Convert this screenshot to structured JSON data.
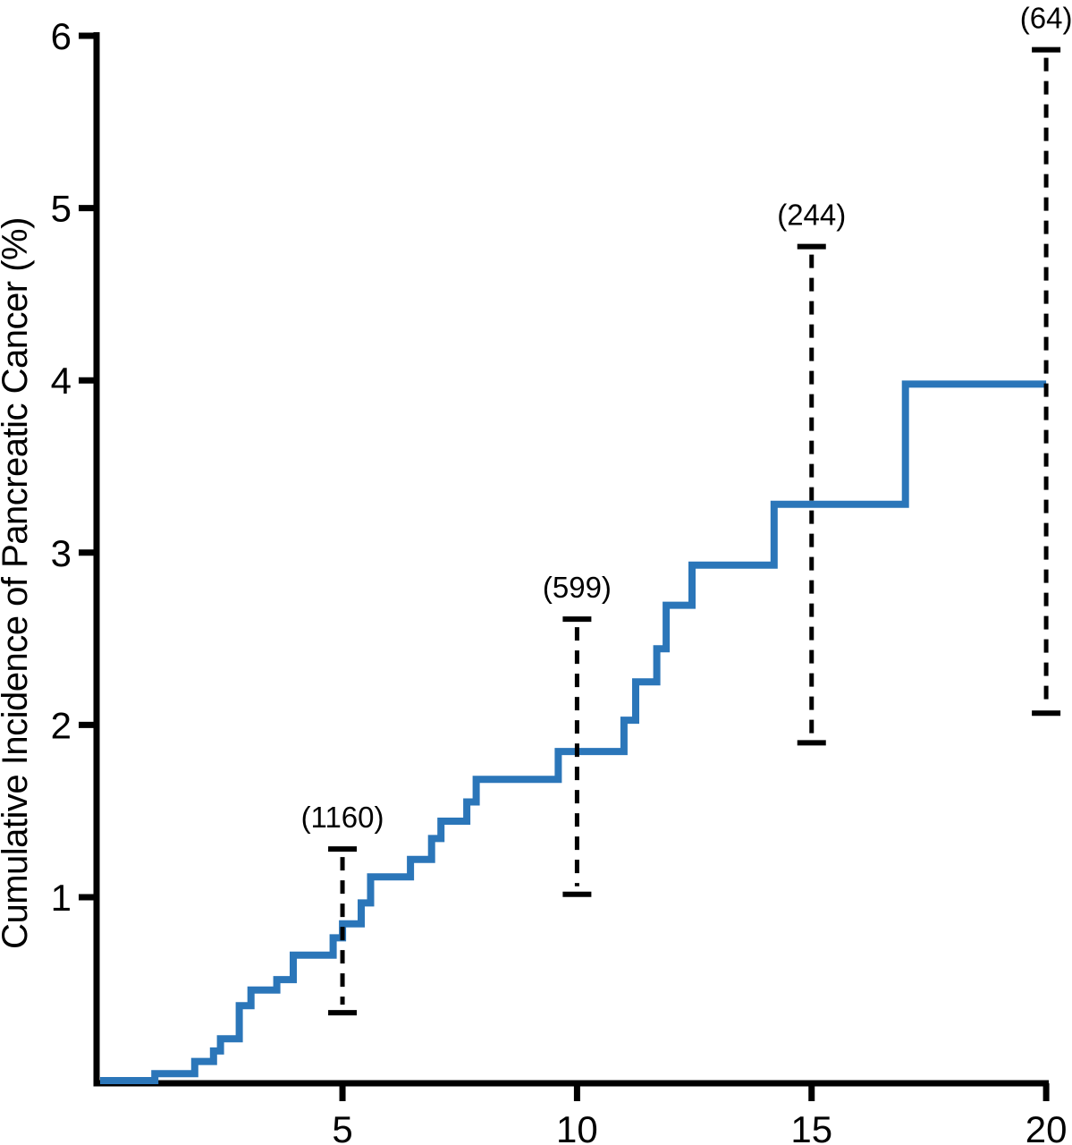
{
  "chart_data": {
    "type": "line",
    "line_style": "step-post",
    "title": "",
    "xlabel": "",
    "ylabel": "Cumulative Incidence of Pancreatic Cancer (%)",
    "xlim": [
      0,
      20
    ],
    "ylim": [
      0,
      6
    ],
    "xticks": [
      5,
      10,
      15,
      20
    ],
    "yticks": [
      1,
      2,
      3,
      4,
      5,
      6
    ],
    "grid": false,
    "legend": "none",
    "colors": {
      "curve": "#2B76B9",
      "axis": "#000000",
      "text": "#000000"
    },
    "series": [
      {
        "name": "cumulative-incidence-of-pancreatic-cancer",
        "color": "#2B76B9",
        "steps": [
          [
            1.0,
            0.04
          ],
          [
            1.85,
            0.11
          ],
          [
            2.25,
            0.17
          ],
          [
            2.4,
            0.24
          ],
          [
            2.8,
            0.43
          ],
          [
            3.05,
            0.52
          ],
          [
            3.6,
            0.58
          ],
          [
            3.95,
            0.72
          ],
          [
            4.8,
            0.82
          ],
          [
            5.0,
            0.9
          ],
          [
            5.4,
            1.02
          ],
          [
            5.6,
            1.17
          ],
          [
            6.45,
            1.27
          ],
          [
            6.9,
            1.39
          ],
          [
            7.1,
            1.49
          ],
          [
            7.65,
            1.6
          ],
          [
            7.85,
            1.73
          ],
          [
            9.6,
            1.89
          ],
          [
            11.0,
            2.07
          ],
          [
            11.25,
            2.29
          ],
          [
            11.7,
            2.48
          ],
          [
            11.9,
            2.73
          ],
          [
            12.45,
            2.96
          ],
          [
            14.2,
            3.31
          ],
          [
            17.0,
            4.0
          ]
        ],
        "end_x": 20
      }
    ],
    "risk_markers": [
      {
        "x": 5,
        "label": "(1160)",
        "ci_low": 0.39,
        "ci_high": 1.33
      },
      {
        "x": 10,
        "label": "(599)",
        "ci_low": 1.07,
        "ci_high": 2.65
      },
      {
        "x": 15,
        "label": "(244)",
        "ci_low": 1.94,
        "ci_high": 4.79
      },
      {
        "x": 20,
        "label": "(64)",
        "ci_low": 2.11,
        "ci_high": 5.92
      }
    ]
  }
}
